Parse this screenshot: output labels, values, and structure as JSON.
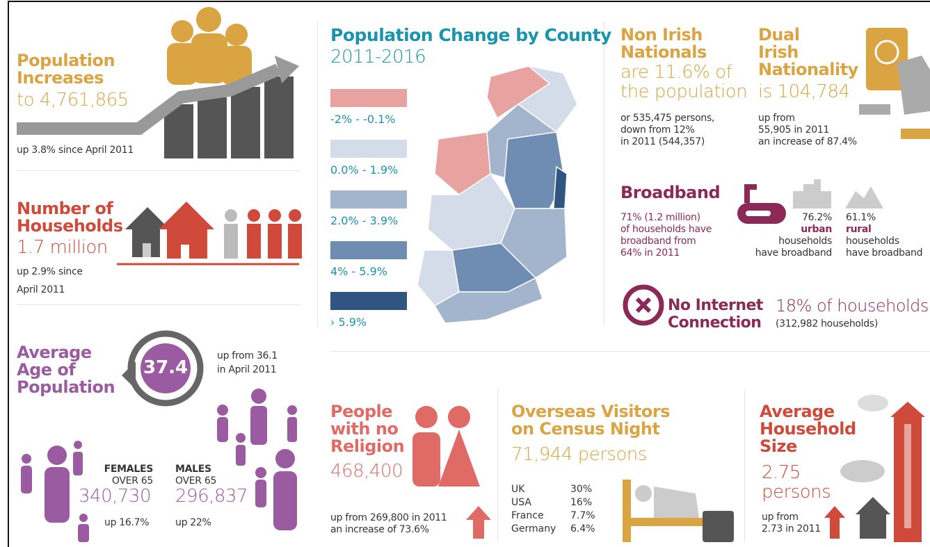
{
  "population": {
    "title_lines": [
      "Population",
      "Increases"
    ],
    "value": "to 4,761,865",
    "note": "up 3.8% since April 2011"
  },
  "households": {
    "title_lines": [
      "Number of",
      "Households"
    ],
    "value": "1.7 million",
    "note_lines": [
      "up 2.9% since",
      "April 2011"
    ]
  },
  "age": {
    "title_lines": [
      "Average",
      "Age of",
      "Population"
    ],
    "value": "37.4",
    "note_lines": [
      "up from 36.1",
      "in April 2011"
    ],
    "females": {
      "label_lines": [
        "FEMALES",
        "OVER 65"
      ],
      "value": "340,730",
      "change": "up 16.7%"
    },
    "males": {
      "label_lines": [
        "MALES",
        "OVER 65"
      ],
      "value": "296,837",
      "change": "up 22%"
    }
  },
  "county_map": {
    "title": "Population Change by County",
    "subtitle": "2011-2016",
    "legend": [
      {
        "label": "-2% - -0.1%",
        "color": "#e8a3a0"
      },
      {
        "label": "0.0% - 1.9%",
        "color": "#d3dce8"
      },
      {
        "label": "2.0% - 3.9%",
        "color": "#a3b5cc"
      },
      {
        "label": "4% - 5.9%",
        "color": "#6f8db3"
      },
      {
        "label": "› 5.9%",
        "color": "#2f5581"
      }
    ]
  },
  "non_irish": {
    "title_lines": [
      "Non Irish",
      "Nationals"
    ],
    "value_lines": [
      "are 11.6% of",
      "the population"
    ],
    "note_lines": [
      "or 535,475 persons,",
      "down from 12%",
      "in 2011 (544,357)"
    ]
  },
  "dual": {
    "title_lines": [
      "Dual",
      "Irish",
      "Nationality"
    ],
    "value": "is 104,784",
    "note_lines": [
      "up from",
      "55,905 in 2011",
      "an increase of 87.4%"
    ]
  },
  "broadband": {
    "title": "Broadband",
    "note_lines": [
      "71% (1.2 million)",
      "of households have",
      "broadband from",
      "64% in 2011"
    ],
    "urban": {
      "value": "76.2%",
      "label": "urban",
      "lines": [
        "households",
        "have broadband"
      ]
    },
    "rural": {
      "value": "61.1%",
      "label": "rural",
      "lines": [
        "households",
        "have broadband"
      ]
    }
  },
  "no_internet": {
    "title_lines": [
      "No Internet",
      "Connection"
    ],
    "value": "18% of households",
    "note": "(312,982 households)"
  },
  "religion": {
    "title_lines": [
      "People",
      "with no",
      "Religion"
    ],
    "value": "468,400",
    "note_lines": [
      "up from 269,800 in 2011",
      "an increase of 73.6%"
    ]
  },
  "visitors": {
    "title_lines": [
      "Overseas Visitors",
      "on Census Night"
    ],
    "value": "71,944 persons",
    "table": {
      "rows": [
        [
          "UK",
          "30%"
        ],
        [
          "USA",
          "16%"
        ],
        [
          "France",
          "7.7%"
        ],
        [
          "Germany",
          "6.4%"
        ]
      ]
    }
  },
  "household_size": {
    "title_lines": [
      "Average",
      "Household",
      "Size"
    ],
    "value_lines": [
      "2.75",
      "persons"
    ],
    "note_lines": [
      "up from",
      "2.73 in 2011"
    ]
  }
}
